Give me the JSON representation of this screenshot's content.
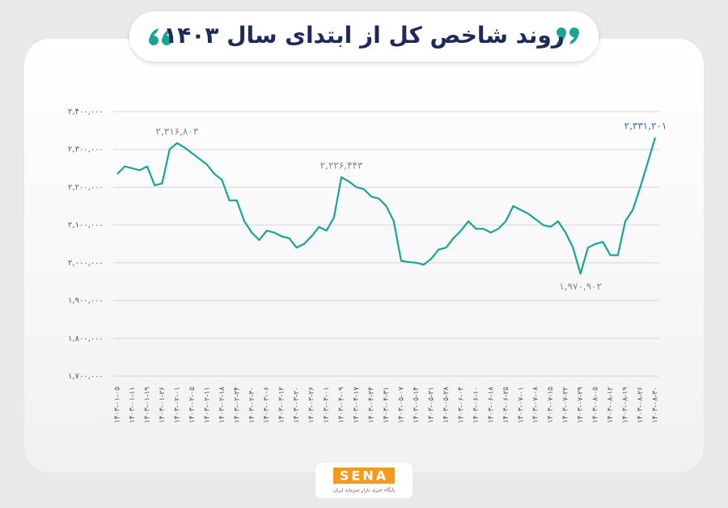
{
  "chart_data": {
    "type": "line",
    "title": "روند شاخص کل از ابتدای سال ۱۴۰۳",
    "categories": [
      "۱۴۰۳-۰۱-۰۵",
      null,
      "۱۴۰۳-۰۱-۱۱",
      null,
      "۱۴۰۳-۰۱-۱۹",
      null,
      "۱۴۰۳-۰۱-۲۶",
      null,
      "۱۴۰۳-۰۲-۰۱",
      null,
      "۱۴۰۳-۰۲-۰۵",
      null,
      "۱۴۰۳-۰۲-۱۱",
      null,
      "۱۴۰۳-۰۲-۱۸",
      null,
      "۱۴۰۳-۰۲-۲۴",
      null,
      "۱۴۰۳-۰۲-۳۰",
      null,
      "۱۴۰۳-۰۳-۰۶",
      null,
      "۱۴۰۳-۰۳-۱۲",
      null,
      "۱۴۰۳-۰۳-۲۰",
      null,
      "۱۴۰۳-۰۳-۲۶",
      null,
      "۱۴۰۳-۰۴-۰۱",
      null,
      "۱۴۰۳-۰۴-۰۹",
      null,
      "۱۴۰۳-۰۴-۱۷",
      null,
      "۱۴۰۳-۰۴-۲۴",
      null,
      "۱۴۰۳-۰۴-۳۱",
      null,
      "۱۴۰۳-۰۵-۰۷",
      null,
      "۱۴۰۳-۰۵-۱۴",
      null,
      "۱۴۰۳-۰۵-۲۱",
      null,
      "۱۴۰۳-۰۵-۲۸",
      null,
      "۱۴۰۳-۰۶-۰۴",
      null,
      "۱۴۰۳-۰۶-۱۰",
      null,
      "۱۴۰۳-۰۶-۱۸",
      null,
      "۱۴۰۳-۰۶-۲۵",
      null,
      "۱۴۰۳-۰۷-۰۱",
      null,
      "۱۴۰۳-۰۷-۰۸",
      null,
      "۱۴۰۳-۰۷-۱۵",
      null,
      "۱۴۰۳-۰۷-۲۲",
      null,
      "۱۴۰۳-۰۷-۲۹",
      null,
      "۱۴۰۳-۰۸-۰۵",
      null,
      "۱۴۰۳-۰۸-۱۲",
      null,
      "۱۴۰۳-۰۸-۱۹",
      null,
      "۱۴۰۳-۰۸-۲۶",
      null,
      "۱۴۰۳-۰۸-۳۰"
    ],
    "values": [
      2235000,
      2255000,
      2250000,
      2245000,
      2255000,
      2205000,
      2210000,
      2300000,
      2316803,
      2305000,
      2290000,
      2275000,
      2260000,
      2235000,
      2220000,
      2165000,
      2165000,
      2110000,
      2080000,
      2060000,
      2085000,
      2080000,
      2070000,
      2065000,
      2040000,
      2050000,
      2070000,
      2095000,
      2085000,
      2120000,
      2226443,
      2215000,
      2200000,
      2195000,
      2175000,
      2170000,
      2150000,
      2110000,
      2005000,
      2002000,
      2000000,
      1995000,
      2010000,
      2035000,
      2040000,
      2065000,
      2085000,
      2110000,
      2090000,
      2090000,
      2080000,
      2090000,
      2110000,
      2150000,
      2140000,
      2130000,
      2115000,
      2100000,
      2095000,
      2110000,
      2080000,
      2040000,
      1970902,
      2040000,
      2050000,
      2055000,
      2020000,
      2020000,
      2110000,
      2140000,
      2200000,
      2265000,
      2331201
    ],
    "value_labels": [
      null,
      null,
      null,
      null,
      null,
      null,
      null,
      null,
      "۲,۳۱۶,۸۰۳",
      null,
      null,
      null,
      null,
      null,
      null,
      null,
      null,
      null,
      null,
      null,
      null,
      null,
      null,
      null,
      null,
      null,
      null,
      null,
      null,
      null,
      "۲,۲۲۶,۴۴۳",
      null,
      null,
      null,
      null,
      null,
      null,
      null,
      null,
      null,
      null,
      null,
      null,
      null,
      null,
      null,
      null,
      null,
      null,
      null,
      null,
      null,
      null,
      null,
      null,
      null,
      null,
      null,
      null,
      null,
      null,
      null,
      "۱,۹۷۰,۹۰۲",
      null,
      null,
      null,
      null,
      null,
      null,
      null,
      null,
      null,
      "۲,۳۳۱,۲۰۱"
    ],
    "color": "#1aa592",
    "ylim": [
      1700000,
      2400000
    ],
    "yticks": [
      {
        "value": 1700000,
        "label": "۱,۷۰۰,۰۰۰"
      },
      {
        "value": 1800000,
        "label": "۱,۸۰۰,۰۰۰"
      },
      {
        "value": 1900000,
        "label": "۱,۹۰۰,۰۰۰"
      },
      {
        "value": 2000000,
        "label": "۲,۰۰۰,۰۰۰"
      },
      {
        "value": 2100000,
        "label": "۲,۱۰۰,۰۰۰"
      },
      {
        "value": 2200000,
        "label": "۲,۲۰۰,۰۰۰"
      },
      {
        "value": 2300000,
        "label": "۲,۳۰۰,۰۰۰"
      },
      {
        "value": 2400000,
        "label": "۲,۴۰۰,۰۰۰"
      }
    ],
    "grid": true,
    "logo": "SENA",
    "logo_caption": "پایگاه خبری بازار سرمایه ایران"
  }
}
